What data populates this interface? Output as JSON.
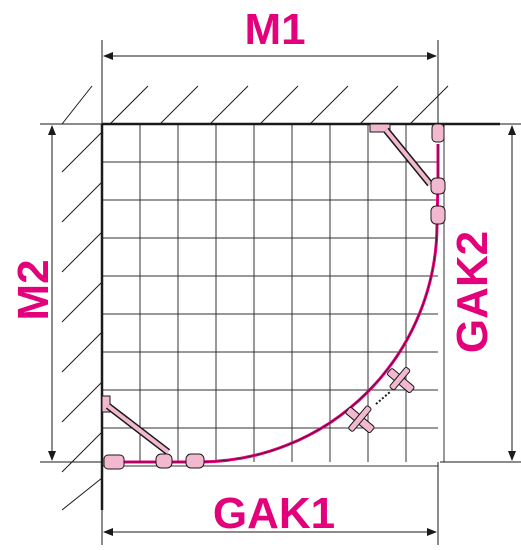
{
  "labels": {
    "top": "M1",
    "left": "M2",
    "right": "GAK2",
    "bottom": "GAK1"
  },
  "colors": {
    "accent": "#e3007a",
    "line": "#1a1a1a",
    "grid": "#333333",
    "fitting": "#f2b8cf"
  }
}
